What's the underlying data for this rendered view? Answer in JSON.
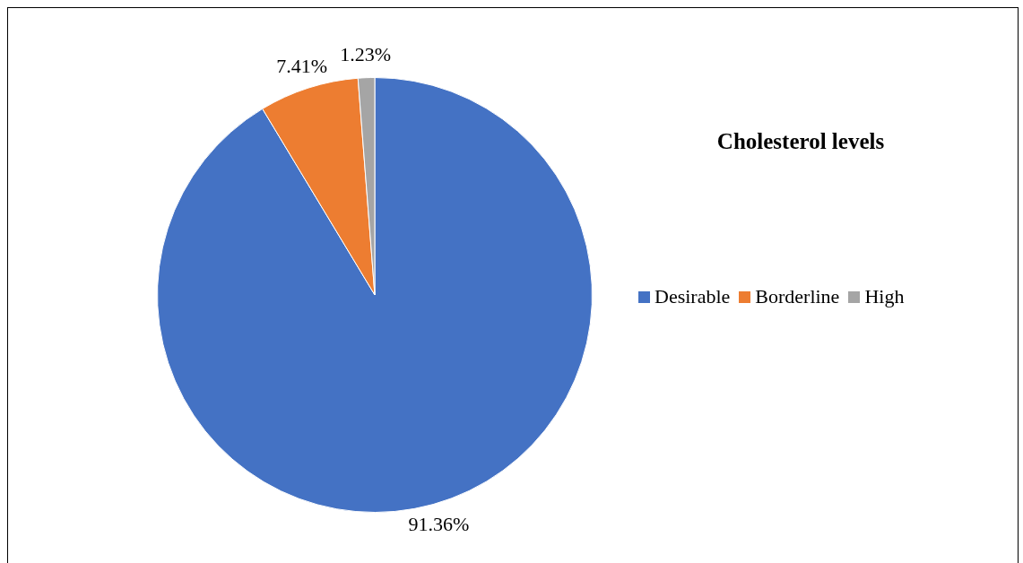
{
  "chart_data": {
    "type": "pie",
    "title": "Cholesterol levels",
    "categories": [
      "Desirable",
      "Borderline",
      "High"
    ],
    "values": [
      91.36,
      7.41,
      1.23
    ],
    "value_labels": [
      "91.36%",
      "7.41%",
      "1.23%"
    ],
    "colors": [
      "#4472c4",
      "#ed7d31",
      "#a5a5a5"
    ],
    "legend": "right"
  }
}
